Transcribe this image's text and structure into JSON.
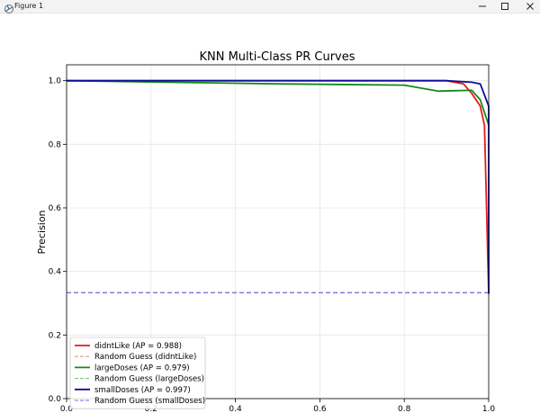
{
  "window": {
    "title": "Figure 1",
    "icons": {
      "app": "matplotlib-figure-icon",
      "minimize": "minimize-icon",
      "maximize": "maximize-icon",
      "close": "close-icon"
    }
  },
  "chart_data": {
    "type": "line",
    "title": "KNN Multi-Class PR Curves",
    "xlabel": "",
    "ylabel": "Precision",
    "xlim": [
      0.0,
      1.0
    ],
    "ylim": [
      0.0,
      1.05
    ],
    "x_ticks": [
      "0.0",
      "0.2",
      "0.4",
      "0.6",
      "0.8",
      "1.0"
    ],
    "y_ticks": [
      "0.0",
      "0.2",
      "0.4",
      "0.6",
      "0.8",
      "1.0"
    ],
    "grid": true,
    "legend_position": "lower-left",
    "series": [
      {
        "name": "didntLike (AP = 0.988)",
        "color": "#e41a1c",
        "style": "solid",
        "x": [
          0.0,
          0.2,
          0.5,
          0.8,
          0.9,
          0.94,
          0.96,
          0.98,
          0.99,
          1.0
        ],
        "y": [
          1.0,
          1.0,
          1.0,
          1.0,
          1.0,
          0.99,
          0.96,
          0.92,
          0.86,
          0.33
        ]
      },
      {
        "name": "Random Guess (didntLike)",
        "color": "#f28f8f",
        "style": "dashed",
        "x": [
          0.0,
          1.0
        ],
        "y": [
          0.333,
          0.333
        ]
      },
      {
        "name": "largeDoses (AP = 0.979)",
        "color": "#178a17",
        "style": "solid",
        "x": [
          0.0,
          0.2,
          0.5,
          0.8,
          0.88,
          0.96,
          0.98,
          1.0
        ],
        "y": [
          1.0,
          0.996,
          0.99,
          0.986,
          0.967,
          0.97,
          0.94,
          0.86
        ]
      },
      {
        "name": "Random Guess (largeDoses)",
        "color": "#7fbf7f",
        "style": "dashed",
        "x": [
          0.0,
          1.0
        ],
        "y": [
          0.333,
          0.333
        ]
      },
      {
        "name": "smallDoses (AP = 0.997)",
        "color": "#0c0c9c",
        "style": "solid",
        "x": [
          0.0,
          0.5,
          0.9,
          0.96,
          0.98,
          1.0,
          1.0
        ],
        "y": [
          1.0,
          1.0,
          1.0,
          0.995,
          0.99,
          0.92,
          0.33
        ]
      },
      {
        "name": "Random Guess (smallDoses)",
        "color": "#6e6ee6",
        "style": "dashed",
        "x": [
          0.0,
          1.0
        ],
        "y": [
          0.333,
          0.333
        ]
      }
    ]
  }
}
